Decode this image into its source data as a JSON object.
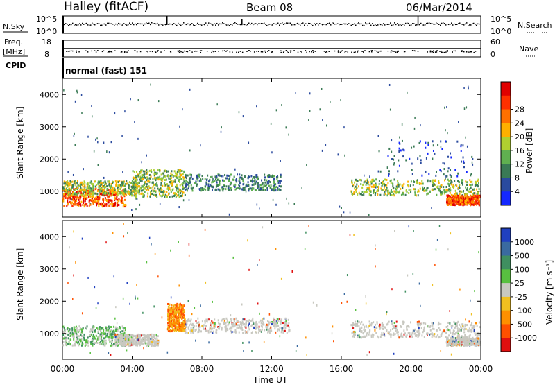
{
  "header": {
    "station": "Halley (fitACF)",
    "beam": "Beam 08",
    "date": "06/Mar/2014"
  },
  "noise_panel": {
    "left_label": "N.Sky",
    "right_label": "N.Search",
    "left_ticks": [
      "10^5",
      "10^0"
    ],
    "right_ticks": [
      "10^5",
      "10^0"
    ]
  },
  "freq_panel": {
    "left_label_line1": "Freq.",
    "left_label_line2": "[MHz]",
    "right_label": "Nave",
    "left_ticks": [
      "18",
      "8"
    ],
    "right_ticks": [
      "60",
      "0"
    ]
  },
  "cpid": {
    "label": "CPID",
    "value": "normal (fast) 151"
  },
  "chart_data": [
    {
      "type": "heatmap",
      "name": "power",
      "ylabel": "Slant Range [km]",
      "yticks": [
        "1000",
        "2000",
        "3000",
        "4000"
      ],
      "ylim": [
        200,
        4500
      ],
      "xlim": [
        "00:00",
        "24:00"
      ],
      "colorbar": {
        "label": "Power [dB]",
        "ticks": [
          "4",
          "8",
          "12",
          "16",
          "20",
          "24",
          "28"
        ],
        "colors": [
          "#1428ff",
          "#2a4a9e",
          "#3a7a55",
          "#60b050",
          "#b0d030",
          "#ffb000",
          "#ff7000",
          "#ff3000",
          "#e00000"
        ]
      },
      "regions": [
        {
          "t": [
            0.0,
            3.6
          ],
          "r": [
            560,
            1100
          ],
          "level": "high"
        },
        {
          "t": [
            0.0,
            4.2
          ],
          "r": [
            900,
            1350
          ],
          "level": "mid"
        },
        {
          "t": [
            4.0,
            7.0
          ],
          "r": [
            850,
            1700
          ],
          "level": "mid"
        },
        {
          "t": [
            7.0,
            12.5
          ],
          "r": [
            1050,
            1550
          ],
          "level": "low"
        },
        {
          "t": [
            16.5,
            23.9
          ],
          "r": [
            900,
            1400
          ],
          "level": "mid"
        },
        {
          "t": [
            22.0,
            23.9
          ],
          "r": [
            600,
            900
          ],
          "level": "high"
        },
        {
          "t": [
            18.0,
            23.5
          ],
          "r": [
            1500,
            2600
          ],
          "level": "sparse"
        }
      ]
    },
    {
      "type": "heatmap",
      "name": "velocity",
      "ylabel": "Slant Range [km]",
      "yticks": [
        "1000",
        "2000",
        "3000",
        "4000"
      ],
      "ylim": [
        200,
        4500
      ],
      "xlim": [
        "00:00",
        "24:00"
      ],
      "xlabel": "Time UT",
      "xticks": [
        "00:00",
        "04:00",
        "08:00",
        "12:00",
        "16:00",
        "20:00",
        "00:00"
      ],
      "colorbar": {
        "label": "Velocity [m s⁻¹]",
        "ticks": [
          "1000",
          "500",
          "100",
          "25",
          "-25",
          "-100",
          "-500",
          "-1000"
        ],
        "colors": [
          "#2040c0",
          "#3a6aa0",
          "#3f8f60",
          "#58c040",
          "#c8c8c0",
          "#f0c020",
          "#ff9000",
          "#ff5000",
          "#e01010"
        ]
      },
      "regions": [
        {
          "t": [
            0.0,
            3.6
          ],
          "r": [
            650,
            1250
          ],
          "level": "positive"
        },
        {
          "t": [
            3.0,
            5.5
          ],
          "r": [
            650,
            1000
          ],
          "level": "zero"
        },
        {
          "t": [
            6.0,
            7.0
          ],
          "r": [
            1100,
            1950
          ],
          "level": "negative"
        },
        {
          "t": [
            7.0,
            13.0
          ],
          "r": [
            1050,
            1500
          ],
          "level": "zero"
        },
        {
          "t": [
            16.5,
            23.9
          ],
          "r": [
            900,
            1400
          ],
          "level": "zero"
        },
        {
          "t": [
            22.0,
            23.9
          ],
          "r": [
            650,
            900
          ],
          "level": "zero"
        }
      ]
    }
  ]
}
